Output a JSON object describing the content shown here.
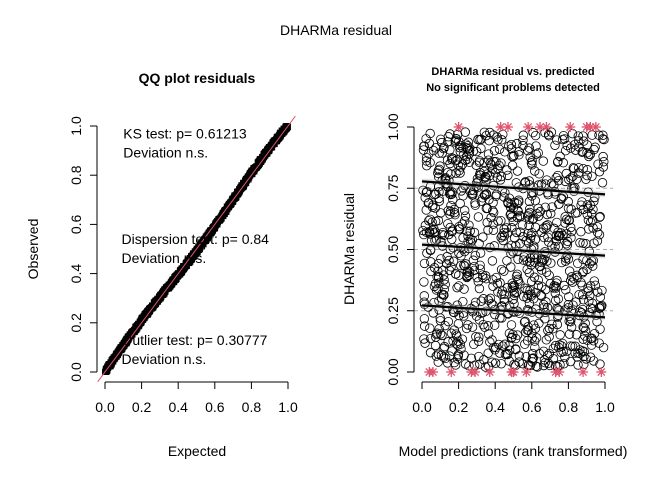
{
  "figure_title": "DHARMa residual",
  "chart_data": [
    {
      "type": "scatter",
      "subtype": "qq",
      "title": "QQ plot residuals",
      "xlabel": "Expected",
      "ylabel": "Observed",
      "xlim": [
        0,
        1
      ],
      "ylim": [
        0,
        1
      ],
      "xticks": [
        "0.0",
        "0.2",
        "0.4",
        "0.6",
        "0.8",
        "1.0"
      ],
      "yticks": [
        "0.0",
        "0.2",
        "0.4",
        "0.6",
        "0.8",
        "1.0"
      ],
      "reference_line": {
        "slope": 1,
        "intercept": 0,
        "color": "#df536b"
      },
      "point_color": "#000000",
      "n_points": 1000,
      "annotations": [
        {
          "lines": [
            "KS test: p= 0.61213",
            "Deviation  n.s."
          ],
          "x": 0.1,
          "y": 0.95
        },
        {
          "lines": [
            "Dispersion test: p= 0.84",
            "Deviation  n.s."
          ],
          "x": 0.09,
          "y": 0.52
        },
        {
          "lines": [
            "Outlier test: p= 0.30777",
            "Deviation  n.s."
          ],
          "x": 0.09,
          "y": 0.11
        }
      ]
    },
    {
      "type": "scatter",
      "title_lines": [
        "DHARMa residual vs. predicted",
        "No significant problems detected"
      ],
      "xlabel": "Model predictions (rank transformed)",
      "ylabel": "DHARMa residual",
      "xlim": [
        0,
        1
      ],
      "ylim": [
        0,
        1
      ],
      "xticks": [
        "0.0",
        "0.2",
        "0.4",
        "0.6",
        "0.8",
        "1.0"
      ],
      "yticks": [
        "0.00",
        "0.25",
        "0.50",
        "0.75",
        "1.00"
      ],
      "reference_lines_y": [
        0.25,
        0.5,
        0.75
      ],
      "n_points": 1000,
      "point_marker": "open-circle",
      "quantile_lines": [
        {
          "quantile": 0.25,
          "x": [
            0,
            1
          ],
          "y": [
            0.272,
            0.223
          ]
        },
        {
          "quantile": 0.5,
          "x": [
            0,
            1
          ],
          "y": [
            0.52,
            0.475
          ]
        },
        {
          "quantile": 0.75,
          "x": [
            0,
            1
          ],
          "y": [
            0.778,
            0.725
          ]
        }
      ],
      "outliers": {
        "color": "#df536b",
        "marker": "star",
        "top": {
          "y": 1.0,
          "x": [
            0.2,
            0.43,
            0.47,
            0.58,
            0.645,
            0.68,
            0.81,
            0.9,
            0.92,
            0.95
          ]
        },
        "bottom": {
          "y": 0.0,
          "x": [
            0.04,
            0.06,
            0.16,
            0.27,
            0.29,
            0.37,
            0.49,
            0.5,
            0.57,
            0.73,
            0.75,
            0.88,
            0.98
          ]
        }
      }
    }
  ]
}
